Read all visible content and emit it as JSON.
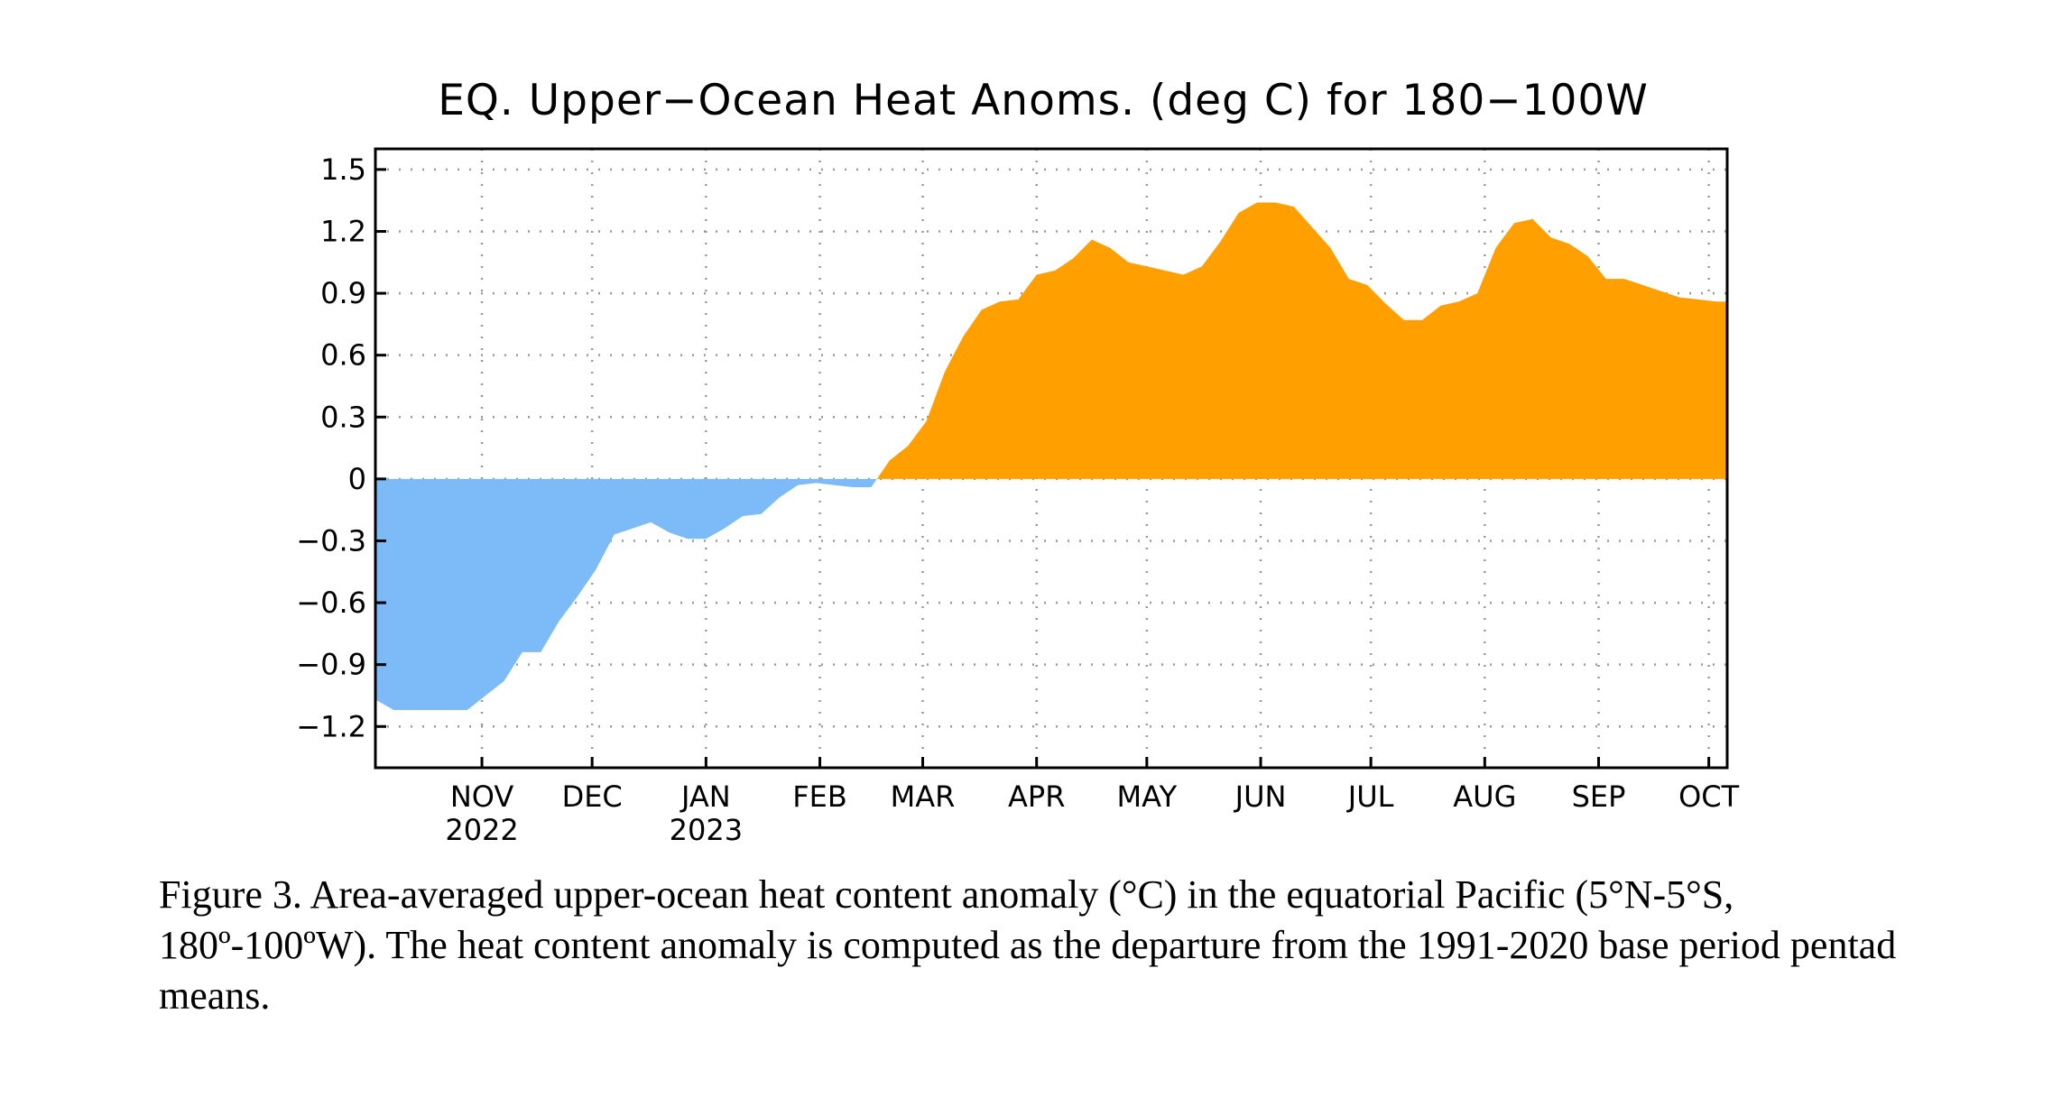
{
  "chart_data": {
    "type": "area",
    "title": "EQ. Upper−Ocean Heat Anoms. (deg C) for 180−100W",
    "xlabel": "",
    "ylabel": "",
    "ylim": [
      -1.4,
      1.6
    ],
    "y_ticks": [
      1.5,
      1.2,
      0.9,
      0.6,
      0.3,
      0,
      -0.3,
      -0.6,
      -0.9,
      -1.2
    ],
    "y_tick_labels": [
      "1.5",
      "1.2",
      "0.9",
      "0.6",
      "0.3",
      "0",
      "−0.3",
      "−0.6",
      "−0.9",
      "−1.2"
    ],
    "x_tick_labels": [
      {
        "date": "2022-11-01",
        "month": "NOV",
        "year": "2022"
      },
      {
        "date": "2022-12-01",
        "month": "DEC",
        "year": ""
      },
      {
        "date": "2023-01-01",
        "month": "JAN",
        "year": "2023"
      },
      {
        "date": "2023-02-01",
        "month": "FEB",
        "year": ""
      },
      {
        "date": "2023-03-01",
        "month": "MAR",
        "year": ""
      },
      {
        "date": "2023-04-01",
        "month": "APR",
        "year": ""
      },
      {
        "date": "2023-05-01",
        "month": "MAY",
        "year": ""
      },
      {
        "date": "2023-06-01",
        "month": "JUN",
        "year": ""
      },
      {
        "date": "2023-07-01",
        "month": "JUL",
        "year": ""
      },
      {
        "date": "2023-08-01",
        "month": "AUG",
        "year": ""
      },
      {
        "date": "2023-09-01",
        "month": "SEP",
        "year": ""
      },
      {
        "date": "2023-10-01",
        "month": "OCT",
        "year": ""
      }
    ],
    "xlim": [
      "2022-10-03",
      "2023-10-06"
    ],
    "grid": true,
    "positive_color": "#FFA000",
    "negative_color": "#7CBBF7",
    "series": [
      {
        "x": [
          "2022-10-03",
          "2022-10-08",
          "2022-10-13",
          "2022-10-18",
          "2022-10-23",
          "2022-10-28",
          "2022-11-02",
          "2022-11-07",
          "2022-11-12",
          "2022-11-17",
          "2022-11-22",
          "2022-11-27",
          "2022-12-02",
          "2022-12-07",
          "2022-12-12",
          "2022-12-17",
          "2022-12-22",
          "2022-12-27",
          "2023-01-01",
          "2023-01-06",
          "2023-01-11",
          "2023-01-16",
          "2023-01-21",
          "2023-01-26",
          "2023-01-31",
          "2023-02-05",
          "2023-02-10",
          "2023-02-15",
          "2023-02-20",
          "2023-02-25",
          "2023-03-02",
          "2023-03-07",
          "2023-03-12",
          "2023-03-17",
          "2023-03-22",
          "2023-03-27",
          "2023-04-01",
          "2023-04-06",
          "2023-04-11",
          "2023-04-16",
          "2023-04-21",
          "2023-04-26",
          "2023-05-01",
          "2023-05-06",
          "2023-05-11",
          "2023-05-16",
          "2023-05-21",
          "2023-05-26",
          "2023-05-31",
          "2023-06-05",
          "2023-06-10",
          "2023-06-15",
          "2023-06-20",
          "2023-06-25",
          "2023-06-30",
          "2023-07-05",
          "2023-07-10",
          "2023-07-15",
          "2023-07-20",
          "2023-07-25",
          "2023-07-30",
          "2023-08-04",
          "2023-08-09",
          "2023-08-14",
          "2023-08-19",
          "2023-08-24",
          "2023-08-29",
          "2023-09-03",
          "2023-09-08",
          "2023-09-13",
          "2023-09-18",
          "2023-09-23",
          "2023-09-28",
          "2023-10-03",
          "2023-10-06"
        ],
        "y": [
          -1.07,
          -1.12,
          -1.12,
          -1.12,
          -1.12,
          -1.12,
          -1.05,
          -0.98,
          -0.84,
          -0.84,
          -0.69,
          -0.57,
          -0.44,
          -0.27,
          -0.24,
          -0.21,
          -0.26,
          -0.29,
          -0.29,
          -0.24,
          -0.18,
          -0.17,
          -0.09,
          -0.03,
          -0.02,
          -0.03,
          -0.04,
          -0.04,
          0.09,
          0.16,
          0.28,
          0.52,
          0.69,
          0.82,
          0.86,
          0.87,
          0.99,
          1.01,
          1.07,
          1.16,
          1.12,
          1.05,
          1.03,
          1.01,
          0.99,
          1.03,
          1.15,
          1.29,
          1.34,
          1.34,
          1.32,
          1.22,
          1.12,
          0.97,
          0.94,
          0.85,
          0.77,
          0.77,
          0.84,
          0.86,
          0.9,
          1.12,
          1.24,
          1.26,
          1.17,
          1.14,
          1.08,
          0.97,
          0.97,
          0.94,
          0.91,
          0.88,
          0.87,
          0.86,
          0.86
        ]
      }
    ]
  },
  "caption": "Figure 3. Area-averaged upper-ocean heat content anomaly (°C) in the equatorial Pacific (5°N-5°S, 180º-100ºW). The heat content anomaly is computed as the departure from the 1991-2020 base period pentad means."
}
